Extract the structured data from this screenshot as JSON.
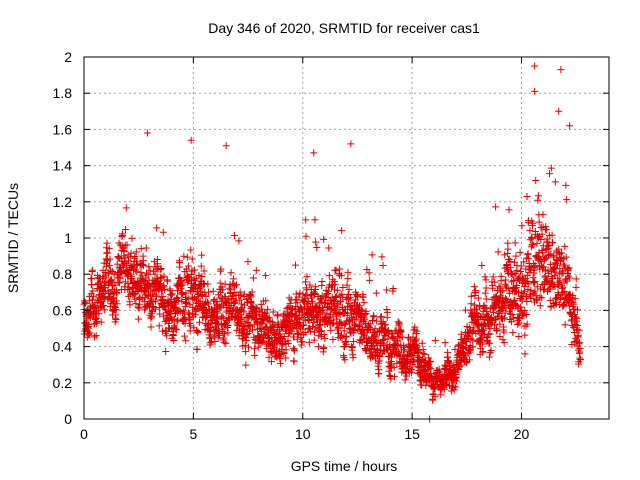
{
  "chart_data": {
    "type": "scatter",
    "title": "Day 346 of 2020, SRMTID for receiver cas1",
    "xlabel": "GPS time / hours",
    "ylabel": "SRMTID / TECUs",
    "xlim": [
      0,
      24
    ],
    "ylim": [
      0,
      2
    ],
    "x_ticks": [
      0,
      5,
      10,
      15,
      20
    ],
    "x_tick_labels": [
      "0",
      "5",
      "10",
      "15",
      "20"
    ],
    "y_ticks": [
      0,
      0.2,
      0.4,
      0.6,
      0.8,
      1,
      1.2,
      1.4,
      1.6,
      1.8,
      2
    ],
    "y_tick_labels": [
      "0",
      "0.2",
      "0.4",
      "0.6",
      "0.8",
      "1",
      "1.2",
      "1.4",
      "1.6",
      "1.8",
      "2"
    ],
    "grid": true,
    "marker": "plus",
    "color": "#e00000",
    "series": [
      {
        "name": "SRMTID",
        "x_start": 0.0,
        "x_end": 22.7,
        "x_step": 0.0083,
        "binned_profile": {
          "hours": [
            0,
            1,
            2,
            3,
            4,
            5,
            6,
            7,
            8,
            9,
            10,
            11,
            12,
            13,
            14,
            15,
            16,
            17,
            18,
            19,
            20,
            21,
            22,
            22.7
          ],
          "median": [
            0.55,
            0.75,
            0.8,
            0.7,
            0.65,
            0.7,
            0.55,
            0.6,
            0.55,
            0.45,
            0.55,
            0.6,
            0.6,
            0.45,
            0.4,
            0.4,
            0.2,
            0.25,
            0.55,
            0.6,
            0.75,
            0.85,
            0.75,
            0.4
          ],
          "spread": [
            0.25,
            0.3,
            0.3,
            0.3,
            0.3,
            0.35,
            0.3,
            0.28,
            0.25,
            0.25,
            0.3,
            0.3,
            0.35,
            0.25,
            0.25,
            0.22,
            0.12,
            0.18,
            0.3,
            0.32,
            0.45,
            0.45,
            0.35,
            0.15
          ]
        },
        "notable_points": [
          {
            "x": 2.9,
            "y": 1.58
          },
          {
            "x": 4.9,
            "y": 1.54
          },
          {
            "x": 6.5,
            "y": 1.51
          },
          {
            "x": 10.5,
            "y": 1.47
          },
          {
            "x": 12.2,
            "y": 1.52
          },
          {
            "x": 20.6,
            "y": 1.95
          },
          {
            "x": 21.8,
            "y": 1.93
          },
          {
            "x": 21.7,
            "y": 1.7
          },
          {
            "x": 22.2,
            "y": 1.62
          },
          {
            "x": 20.6,
            "y": 1.81
          },
          {
            "x": 15.8,
            "y": 0.0
          }
        ]
      }
    ]
  }
}
